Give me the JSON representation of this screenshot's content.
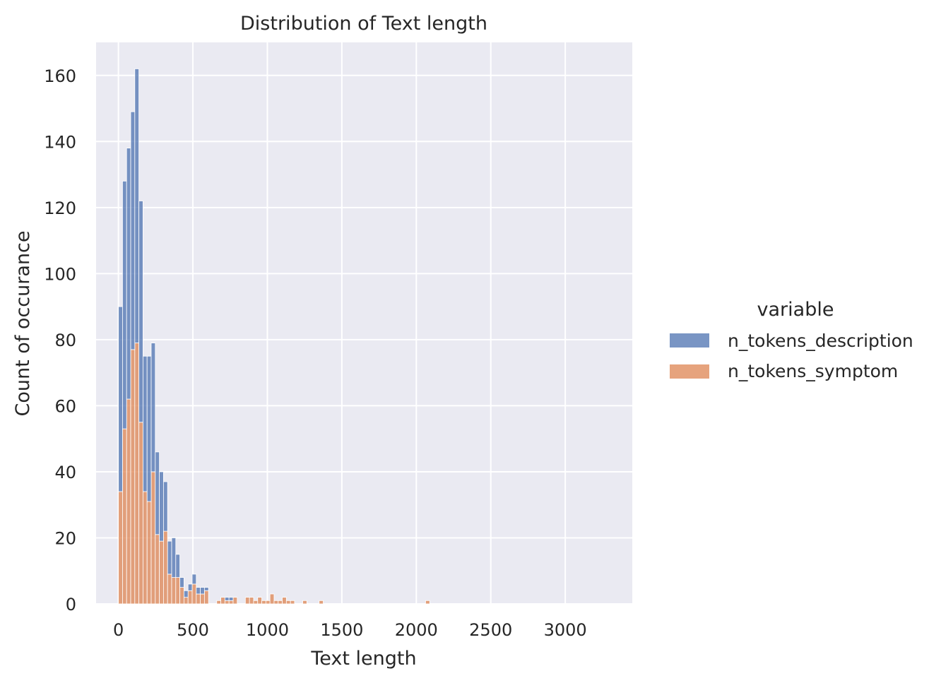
{
  "chart_data": {
    "type": "bar",
    "subtype": "stacked-histogram",
    "title": "Distribution of Text length",
    "xlabel": "Text length",
    "ylabel": "Count of occurance",
    "xlim": [
      -150,
      3450
    ],
    "ylim": [
      0,
      170
    ],
    "x_ticks": [
      0,
      500,
      1000,
      1500,
      2000,
      2500,
      3000
    ],
    "y_ticks": [
      0,
      20,
      40,
      60,
      80,
      100,
      120,
      140,
      160
    ],
    "grid": true,
    "legend": {
      "title": "variable",
      "placement": "right",
      "entries": [
        "n_tokens_description",
        "n_tokens_symptom"
      ]
    },
    "colors": {
      "background": "#eaeaf2",
      "grid": "#ffffff",
      "n_tokens_description": "#4c72b0",
      "n_tokens_symptom": "#dd8452"
    },
    "bin_width": 27.5,
    "bin_start": 0,
    "series": [
      {
        "name": "n_tokens_symptom",
        "bins": [
          [
            0,
            34
          ],
          [
            1,
            53
          ],
          [
            2,
            62
          ],
          [
            3,
            77
          ],
          [
            4,
            79
          ],
          [
            5,
            55
          ],
          [
            6,
            34
          ],
          [
            7,
            31
          ],
          [
            8,
            40
          ],
          [
            9,
            21
          ],
          [
            10,
            19
          ],
          [
            11,
            22
          ],
          [
            12,
            9
          ],
          [
            13,
            8
          ],
          [
            14,
            8
          ],
          [
            15,
            5
          ],
          [
            16,
            2
          ],
          [
            17,
            4
          ],
          [
            18,
            6
          ],
          [
            19,
            3
          ],
          [
            20,
            3
          ],
          [
            21,
            4
          ],
          [
            24,
            1
          ],
          [
            25,
            2
          ],
          [
            26,
            1
          ],
          [
            27,
            1
          ],
          [
            28,
            2
          ],
          [
            31,
            2
          ],
          [
            32,
            2
          ],
          [
            33,
            1
          ],
          [
            34,
            2
          ],
          [
            35,
            1
          ],
          [
            36,
            1
          ],
          [
            37,
            3
          ],
          [
            38,
            1
          ],
          [
            39,
            1
          ],
          [
            40,
            2
          ],
          [
            41,
            1
          ],
          [
            42,
            1
          ],
          [
            45,
            1
          ],
          [
            49,
            1
          ],
          [
            75,
            1
          ]
        ]
      },
      {
        "name": "n_tokens_description",
        "bins": [
          [
            0,
            56
          ],
          [
            1,
            75
          ],
          [
            2,
            76
          ],
          [
            3,
            72
          ],
          [
            4,
            83
          ],
          [
            5,
            67
          ],
          [
            6,
            41
          ],
          [
            7,
            44
          ],
          [
            8,
            39
          ],
          [
            9,
            25
          ],
          [
            10,
            21
          ],
          [
            11,
            15
          ],
          [
            12,
            10
          ],
          [
            13,
            12
          ],
          [
            14,
            7
          ],
          [
            15,
            3
          ],
          [
            16,
            2
          ],
          [
            17,
            2
          ],
          [
            18,
            3
          ],
          [
            19,
            2
          ],
          [
            20,
            2
          ],
          [
            21,
            1
          ],
          [
            26,
            1
          ],
          [
            27,
            1
          ]
        ]
      }
    ]
  }
}
